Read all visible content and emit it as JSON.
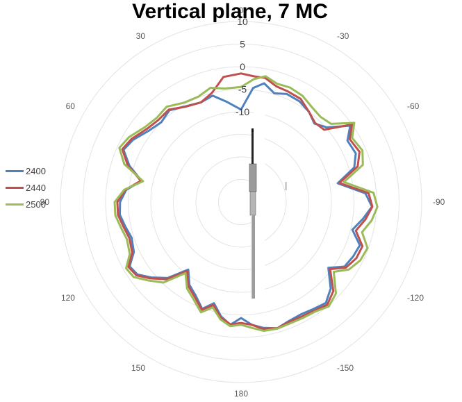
{
  "chart_data": {
    "type": "polar-line",
    "title": "Vertical plane, 7 MC",
    "angle_labels": [
      "0",
      "30",
      "60",
      "90",
      "120",
      "150",
      "180",
      "-150",
      "-120",
      "-90",
      "-60",
      "-30"
    ],
    "angle_values": [
      0,
      30,
      60,
      90,
      120,
      150,
      180,
      210,
      240,
      270,
      300,
      330
    ],
    "radial_ticks": [
      10,
      5,
      0,
      -5,
      -10
    ],
    "radial_range": [
      -30,
      10
    ],
    "angle_direction": "counterclockwise, 0 at top",
    "grid": true,
    "legend_position": "left",
    "series": [
      {
        "name": "2400",
        "color": "#4f81bd",
        "points": [
          [
            0,
            -9.5
          ],
          [
            8,
            -7.6
          ],
          [
            15,
            -5.6
          ],
          [
            22,
            -6.2
          ],
          [
            30,
            -5.5
          ],
          [
            38,
            -4.2
          ],
          [
            45,
            -5.0
          ],
          [
            52,
            -4.2
          ],
          [
            60,
            -2.4
          ],
          [
            66,
            -1.5
          ],
          [
            72,
            -4.0
          ],
          [
            78,
            -7.5
          ],
          [
            84,
            -4.4
          ],
          [
            90,
            -3.2
          ],
          [
            96,
            -3.0
          ],
          [
            102,
            -3.8
          ],
          [
            108,
            -4.5
          ],
          [
            115,
            -3.8
          ],
          [
            120,
            -1.5
          ],
          [
            125,
            -2.0
          ],
          [
            130,
            -4.0
          ],
          [
            136,
            -6.6
          ],
          [
            142,
            -11.0
          ],
          [
            148,
            -8.4
          ],
          [
            154,
            -7.0
          ],
          [
            160,
            -4.8
          ],
          [
            165,
            -6.8
          ],
          [
            170,
            -4.3
          ],
          [
            175,
            -2.7
          ],
          [
            180,
            -4.3
          ],
          [
            185,
            -2.7
          ],
          [
            190,
            -1.7
          ],
          [
            196,
            -0.9
          ],
          [
            202,
            -1.6
          ],
          [
            208,
            -1.8
          ],
          [
            214,
            -1.4
          ],
          [
            220,
            -0.8
          ],
          [
            226,
            -2.4
          ],
          [
            233,
            -5.8
          ],
          [
            238,
            -3.0
          ],
          [
            244,
            -2.4
          ],
          [
            250,
            -2.0
          ],
          [
            256,
            -4.6
          ],
          [
            262,
            -2.8
          ],
          [
            268,
            -1.0
          ],
          [
            274,
            -2.4
          ],
          [
            281,
            -8.2
          ],
          [
            287,
            -3.8
          ],
          [
            293,
            -2.4
          ],
          [
            300,
            -2.8
          ],
          [
            305,
            -0.5
          ],
          [
            311,
            -4.8
          ],
          [
            317,
            -6.2
          ],
          [
            323,
            -5.0
          ],
          [
            330,
            -4.2
          ],
          [
            337,
            -4.0
          ],
          [
            343,
            -4.8
          ],
          [
            349,
            -3.2
          ],
          [
            354,
            -4.6
          ],
          [
            360,
            -9.5
          ]
        ]
      },
      {
        "name": "2440",
        "color": "#c0504d",
        "points": [
          [
            0,
            -1.5
          ],
          [
            8,
            -2.0
          ],
          [
            15,
            -5.0
          ],
          [
            22,
            -6.2
          ],
          [
            30,
            -5.6
          ],
          [
            38,
            -4.0
          ],
          [
            45,
            -4.2
          ],
          [
            52,
            -3.6
          ],
          [
            60,
            -2.0
          ],
          [
            66,
            -1.2
          ],
          [
            72,
            -3.6
          ],
          [
            78,
            -7.3
          ],
          [
            84,
            -4.2
          ],
          [
            90,
            -2.6
          ],
          [
            96,
            -2.6
          ],
          [
            102,
            -3.4
          ],
          [
            108,
            -4.0
          ],
          [
            115,
            -3.4
          ],
          [
            120,
            -1.2
          ],
          [
            125,
            -1.7
          ],
          [
            130,
            -3.7
          ],
          [
            136,
            -6.2
          ],
          [
            142,
            -10.6
          ],
          [
            148,
            -8.0
          ],
          [
            154,
            -6.6
          ],
          [
            160,
            -4.6
          ],
          [
            165,
            -6.4
          ],
          [
            170,
            -4.0
          ],
          [
            175,
            -2.8
          ],
          [
            180,
            -3.2
          ],
          [
            185,
            -2.7
          ],
          [
            190,
            -1.4
          ],
          [
            196,
            -0.9
          ],
          [
            202,
            -1.4
          ],
          [
            208,
            -1.3
          ],
          [
            214,
            -1.0
          ],
          [
            220,
            -0.3
          ],
          [
            226,
            -1.6
          ],
          [
            233,
            -5.3
          ],
          [
            238,
            -2.6
          ],
          [
            244,
            -1.6
          ],
          [
            250,
            -1.4
          ],
          [
            256,
            -3.8
          ],
          [
            262,
            -2.2
          ],
          [
            268,
            -0.9
          ],
          [
            274,
            -1.7
          ],
          [
            281,
            -7.8
          ],
          [
            287,
            -3.0
          ],
          [
            293,
            -1.5
          ],
          [
            300,
            -2.2
          ],
          [
            305,
            0.0
          ],
          [
            311,
            -5.6
          ],
          [
            317,
            -6.0
          ],
          [
            323,
            -5.0
          ],
          [
            330,
            -3.6
          ],
          [
            337,
            -3.4
          ],
          [
            343,
            -3.2
          ],
          [
            349,
            -2.0
          ],
          [
            354,
            -2.0
          ],
          [
            360,
            -1.5
          ]
        ]
      },
      {
        "name": "2500",
        "color": "#9bbb59",
        "points": [
          [
            0,
            -4.5
          ],
          [
            8,
            -4.6
          ],
          [
            15,
            -3.8
          ],
          [
            22,
            -4.8
          ],
          [
            30,
            -4.6
          ],
          [
            38,
            -3.2
          ],
          [
            45,
            -3.6
          ],
          [
            52,
            -3.0
          ],
          [
            60,
            -1.3
          ],
          [
            66,
            -0.5
          ],
          [
            72,
            -2.8
          ],
          [
            78,
            -7.8
          ],
          [
            84,
            -4.0
          ],
          [
            90,
            -2.0
          ],
          [
            96,
            -2.0
          ],
          [
            102,
            -2.8
          ],
          [
            108,
            -3.4
          ],
          [
            115,
            -2.8
          ],
          [
            120,
            -0.6
          ],
          [
            125,
            -1.0
          ],
          [
            130,
            -3.0
          ],
          [
            136,
            -5.2
          ],
          [
            142,
            -10.0
          ],
          [
            148,
            -7.4
          ],
          [
            154,
            -6.0
          ],
          [
            160,
            -4.0
          ],
          [
            165,
            -5.8
          ],
          [
            170,
            -3.6
          ],
          [
            175,
            -2.4
          ],
          [
            180,
            -2.8
          ],
          [
            185,
            -2.0
          ],
          [
            190,
            -1.0
          ],
          [
            196,
            -0.8
          ],
          [
            202,
            -1.0
          ],
          [
            208,
            -0.9
          ],
          [
            214,
            -0.7
          ],
          [
            220,
            0.2
          ],
          [
            226,
            -0.8
          ],
          [
            233,
            -4.3
          ],
          [
            238,
            -1.8
          ],
          [
            244,
            -0.6
          ],
          [
            250,
            -0.2
          ],
          [
            256,
            -2.4
          ],
          [
            262,
            -0.8
          ],
          [
            268,
            0.2
          ],
          [
            274,
            -0.6
          ],
          [
            281,
            -6.8
          ],
          [
            287,
            -1.8
          ],
          [
            293,
            -0.8
          ],
          [
            300,
            -1.6
          ],
          [
            305,
            0.6
          ],
          [
            311,
            -3.6
          ],
          [
            317,
            -4.2
          ],
          [
            323,
            -3.8
          ],
          [
            330,
            -2.8
          ],
          [
            337,
            -2.4
          ],
          [
            343,
            -2.6
          ],
          [
            349,
            -1.6
          ],
          [
            354,
            -2.6
          ],
          [
            360,
            -4.5
          ]
        ]
      }
    ]
  }
}
